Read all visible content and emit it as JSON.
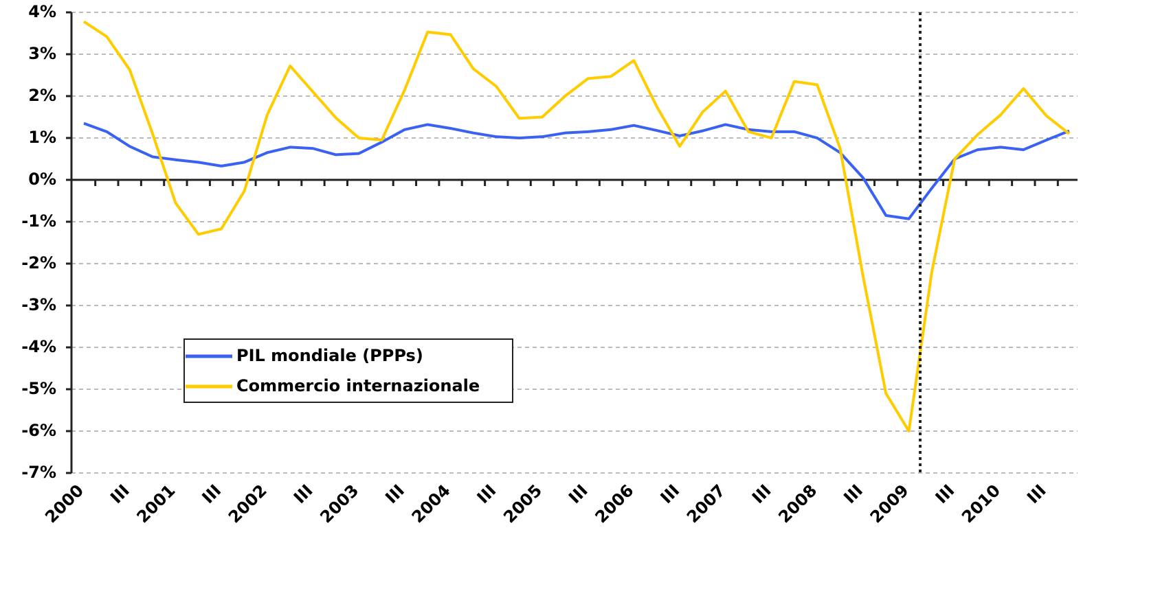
{
  "chart_data": {
    "type": "line",
    "categories": [
      "2000",
      null,
      "III",
      null,
      "2001",
      null,
      "III",
      null,
      "2002",
      null,
      "III",
      null,
      "2003",
      null,
      "III",
      null,
      "2004",
      null,
      "III",
      null,
      "2005",
      null,
      "III",
      null,
      "2006",
      null,
      "III",
      null,
      "2007",
      null,
      "III",
      null,
      "2008",
      null,
      "III",
      null,
      "2009",
      null,
      "III",
      null,
      "2010",
      null,
      "III",
      null
    ],
    "series": [
      {
        "name": "PIL mondiale (PPPs)",
        "color": "#3a62f2",
        "values": [
          1.35,
          1.15,
          0.8,
          0.55,
          0.48,
          0.42,
          0.33,
          0.42,
          0.65,
          0.78,
          0.75,
          0.6,
          0.63,
          0.9,
          1.2,
          1.32,
          1.23,
          1.12,
          1.03,
          1.0,
          1.03,
          1.12,
          1.15,
          1.2,
          1.3,
          1.18,
          1.05,
          1.17,
          1.32,
          1.2,
          1.15,
          1.15,
          1.0,
          0.65,
          0.05,
          -0.85,
          -0.93,
          -0.2,
          0.5,
          0.72,
          0.78,
          0.72,
          0.95,
          1.17
        ]
      },
      {
        "name": "Commercio internazionale",
        "color": "#ffcc00",
        "values": [
          3.78,
          3.42,
          2.63,
          1.1,
          -0.55,
          -1.3,
          -1.17,
          -0.27,
          1.55,
          2.72,
          2.1,
          1.48,
          1.0,
          0.95,
          2.15,
          3.53,
          3.47,
          2.65,
          2.23,
          1.47,
          1.5,
          2.0,
          2.42,
          2.47,
          2.85,
          1.75,
          0.8,
          1.62,
          2.12,
          1.15,
          1.0,
          2.35,
          2.27,
          0.75,
          -2.3,
          -5.1,
          -6.0,
          -2.2,
          0.5,
          1.08,
          1.55,
          2.18,
          1.53,
          1.1
        ]
      }
    ],
    "ylim": [
      -7,
      4
    ],
    "yticks": [
      {
        "value": 4,
        "label": "4%"
      },
      {
        "value": 3,
        "label": "3%"
      },
      {
        "value": 2,
        "label": "2%"
      },
      {
        "value": 1,
        "label": "1%"
      },
      {
        "value": 0,
        "label": "0%"
      },
      {
        "value": -1,
        "label": "-1%"
      },
      {
        "value": -2,
        "label": "-2%"
      },
      {
        "value": -3,
        "label": "-3%"
      },
      {
        "value": -4,
        "label": "-4%"
      },
      {
        "value": -5,
        "label": "-5%"
      },
      {
        "value": -6,
        "label": "-6%"
      },
      {
        "value": -7,
        "label": "-7%"
      }
    ],
    "grid": true
  }
}
